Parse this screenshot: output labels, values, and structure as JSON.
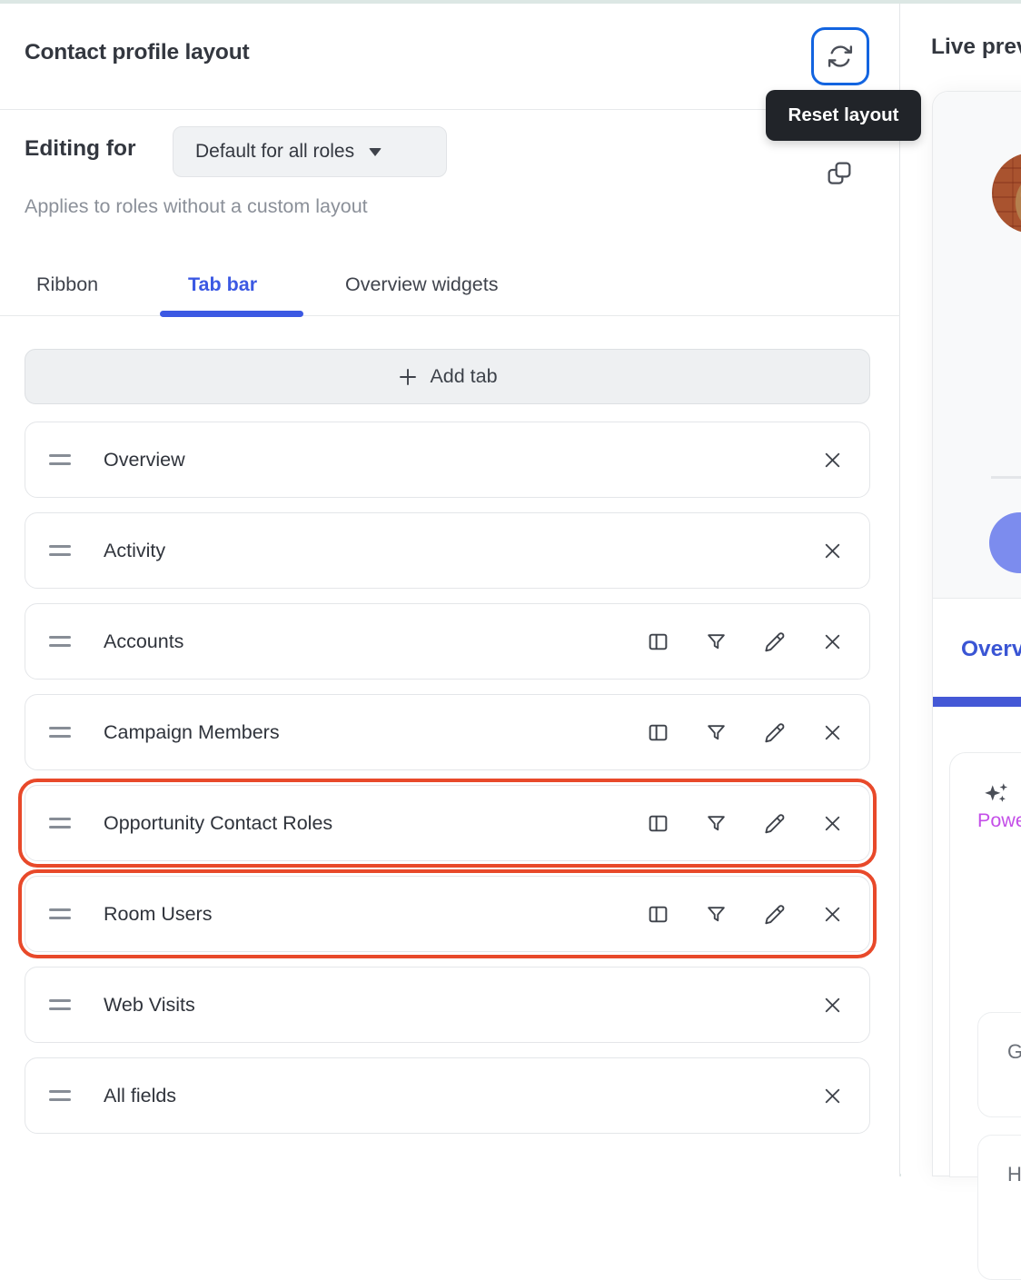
{
  "header": {
    "title": "Contact profile layout",
    "reset_tooltip": "Reset layout"
  },
  "editing": {
    "label": "Editing for",
    "role_selector_value": "Default for all roles",
    "description": "Applies to roles without a custom layout"
  },
  "tabs": {
    "items": [
      {
        "label": "Ribbon",
        "active": false
      },
      {
        "label": "Tab bar",
        "active": true
      },
      {
        "label": "Overview widgets",
        "active": false
      }
    ]
  },
  "tab_list": {
    "add_button_label": "Add tab",
    "rows": [
      {
        "label": "Overview",
        "has_actions": false,
        "highlighted": false
      },
      {
        "label": "Activity",
        "has_actions": false,
        "highlighted": false
      },
      {
        "label": "Accounts",
        "has_actions": true,
        "highlighted": false
      },
      {
        "label": "Campaign Members",
        "has_actions": true,
        "highlighted": false
      },
      {
        "label": "Opportunity Contact Roles",
        "has_actions": true,
        "highlighted": true
      },
      {
        "label": "Room Users",
        "has_actions": true,
        "highlighted": true
      },
      {
        "label": "Web Visits",
        "has_actions": false,
        "highlighted": false
      },
      {
        "label": "All fields",
        "has_actions": false,
        "highlighted": false
      }
    ],
    "row_action_icons": [
      "columns-icon",
      "filter-icon",
      "edit-icon",
      "close-icon"
    ]
  },
  "live_preview": {
    "title": "Live preview",
    "active_tab": "Overview",
    "ai_widget_label": "Powe",
    "fields": [
      {
        "label": "Gi"
      },
      {
        "label": "H"
      }
    ]
  },
  "colors": {
    "accent_blue": "#3c59e3",
    "reset_focus_blue": "#1264e0",
    "highlight_orange": "#e8492a",
    "tooltip_bg": "#212429",
    "ai_purple": "#c44fe8",
    "preview_fab_blue": "#7c8cee"
  }
}
